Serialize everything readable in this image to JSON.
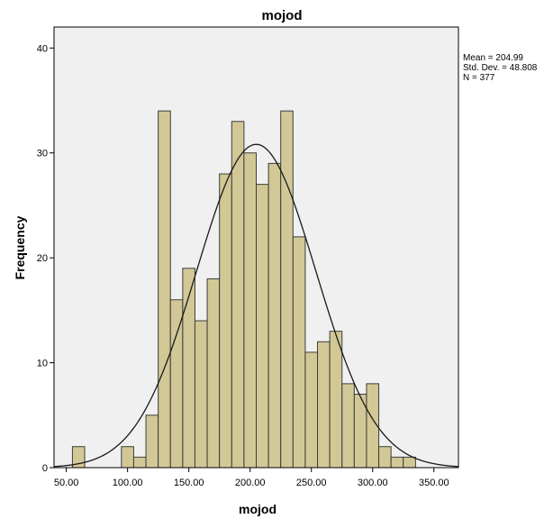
{
  "chart_data": {
    "type": "bar",
    "subtype": "histogram",
    "title": "mojod",
    "xlabel": "mojod",
    "ylabel": "Frequency",
    "xlim": [
      40,
      370
    ],
    "ylim": [
      0,
      42
    ],
    "x_ticks": [
      50,
      100,
      150,
      200,
      250,
      300,
      350
    ],
    "x_tick_labels": [
      "50.00",
      "100.00",
      "150.00",
      "200.00",
      "250.00",
      "300.00",
      "350.00"
    ],
    "y_ticks": [
      0,
      10,
      20,
      30,
      40
    ],
    "y_tick_labels": [
      "0",
      "10",
      "20",
      "30",
      "40"
    ],
    "bin_width": 10,
    "bins": [
      {
        "start": 55,
        "count": 2
      },
      {
        "start": 95,
        "count": 2
      },
      {
        "start": 105,
        "count": 1
      },
      {
        "start": 115,
        "count": 5
      },
      {
        "start": 125,
        "count": 34
      },
      {
        "start": 135,
        "count": 16
      },
      {
        "start": 145,
        "count": 19
      },
      {
        "start": 155,
        "count": 14
      },
      {
        "start": 165,
        "count": 18
      },
      {
        "start": 175,
        "count": 28
      },
      {
        "start": 185,
        "count": 33
      },
      {
        "start": 195,
        "count": 30
      },
      {
        "start": 205,
        "count": 27
      },
      {
        "start": 215,
        "count": 29
      },
      {
        "start": 225,
        "count": 34
      },
      {
        "start": 235,
        "count": 22
      },
      {
        "start": 245,
        "count": 11
      },
      {
        "start": 255,
        "count": 12
      },
      {
        "start": 265,
        "count": 13
      },
      {
        "start": 275,
        "count": 8
      },
      {
        "start": 285,
        "count": 7
      },
      {
        "start": 295,
        "count": 8
      },
      {
        "start": 305,
        "count": 2
      },
      {
        "start": 315,
        "count": 1
      },
      {
        "start": 325,
        "count": 1
      }
    ],
    "normal_curve": {
      "mean": 204.99,
      "std": 48.808,
      "n": 377
    },
    "stats_lines": [
      "Mean = 204.99",
      "Std. Dev. = 48.808",
      "N = 377"
    ],
    "grid": false,
    "colors": {
      "bar_fill": "#d2c896",
      "bar_stroke": "#3c3c3c",
      "plot_background": "#f0f0f0",
      "curve": "#1a1a1a"
    }
  }
}
